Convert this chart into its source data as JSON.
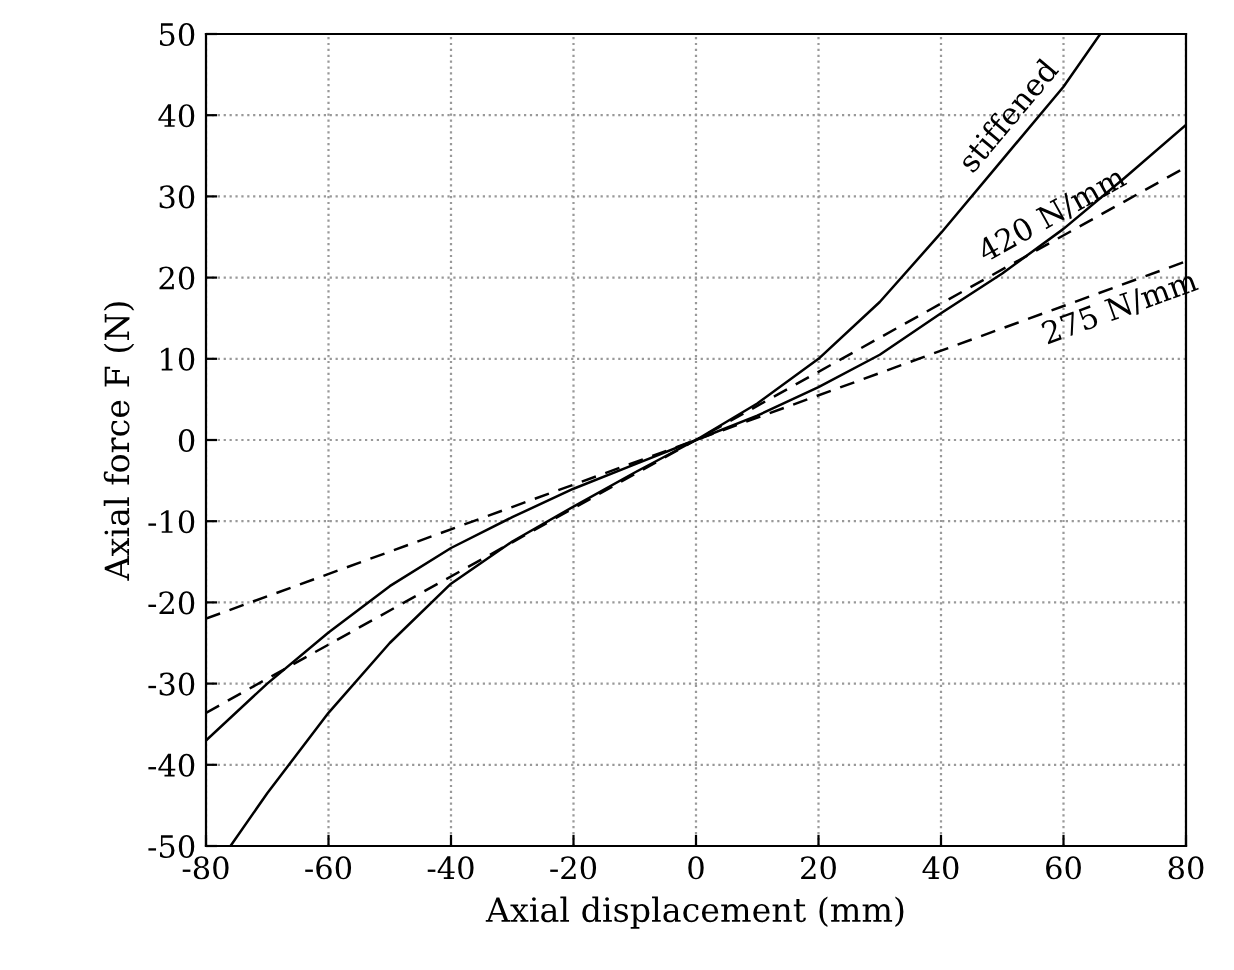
{
  "chart_data": {
    "type": "line",
    "xlabel": "Axial displacement (mm)",
    "ylabel": "Axial force F (N)",
    "xlim": [
      -80,
      80
    ],
    "ylim": [
      -50,
      50
    ],
    "xticks": [
      -80,
      -60,
      -40,
      -20,
      0,
      20,
      40,
      60,
      80
    ],
    "yticks": [
      -50,
      -40,
      -30,
      -20,
      -10,
      0,
      10,
      20,
      30,
      40,
      50
    ],
    "grid": true,
    "series": [
      {
        "color": "#000000",
        "line_style": "solid",
        "x": [
          -76,
          -70,
          -60,
          -50,
          -40,
          -30,
          -20,
          -10,
          0,
          10,
          20,
          30,
          40,
          50,
          60,
          66
        ],
        "values": [
          -50,
          -43.5,
          -33.6,
          -25,
          -17.7,
          -12.5,
          -8.2,
          -4,
          0,
          4.5,
          10,
          17,
          25.5,
          34.5,
          43.5,
          50
        ]
      },
      {
        "color": "#000000",
        "line_style": "solid",
        "x": [
          -80,
          -70,
          -60,
          -50,
          -40,
          -30,
          -20,
          -10,
          0,
          10,
          20,
          30,
          40,
          50,
          60,
          70,
          80
        ],
        "values": [
          -37,
          -30,
          -23.7,
          -18,
          -13.3,
          -9.5,
          -6,
          -3,
          0,
          3,
          6.5,
          10.5,
          15.6,
          20.5,
          26,
          32.3,
          38.8
        ]
      },
      {
        "color": "#000000",
        "line_style": "dashed",
        "x": [
          -80,
          80
        ],
        "values": [
          -33.6,
          33.6
        ]
      },
      {
        "color": "#000000",
        "line_style": "dashed",
        "x": [
          -80,
          80
        ],
        "values": [
          -22,
          22
        ]
      }
    ],
    "annotations": [
      {
        "text": "stiffened",
        "x": 54,
        "y": 38
      },
      {
        "text": "420 N/mm",
        "x": 60,
        "y": 25.2
      },
      {
        "text": "275 N/mm",
        "x": 68,
        "y": 18.7
      }
    ]
  }
}
